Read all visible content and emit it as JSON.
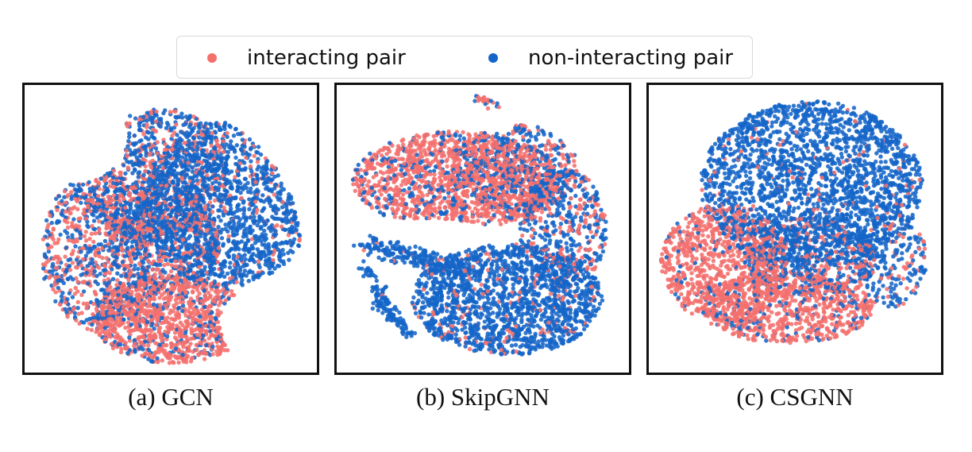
{
  "legend": {
    "items": [
      {
        "label": "interacting pair",
        "color": "#f4706d"
      },
      {
        "label": "non-interacting pair",
        "color": "#1565c8"
      }
    ]
  },
  "chart_data": [
    {
      "type": "scatter",
      "caption": "(a) GCN",
      "series": [
        {
          "name": "interacting pair",
          "color": "#f4706d"
        },
        {
          "name": "non-interacting pair",
          "color": "#1565c8"
        }
      ],
      "axes": "hidden"
    },
    {
      "type": "scatter",
      "caption": "(b) SkipGNN",
      "series": [
        {
          "name": "interacting pair",
          "color": "#f4706d"
        },
        {
          "name": "non-interacting pair",
          "color": "#1565c8"
        }
      ],
      "axes": "hidden"
    },
    {
      "type": "scatter",
      "caption": "(c) CSGNN",
      "series": [
        {
          "name": "interacting pair",
          "color": "#f4706d"
        },
        {
          "name": "non-interacting pair",
          "color": "#1565c8"
        }
      ],
      "axes": "hidden"
    }
  ]
}
